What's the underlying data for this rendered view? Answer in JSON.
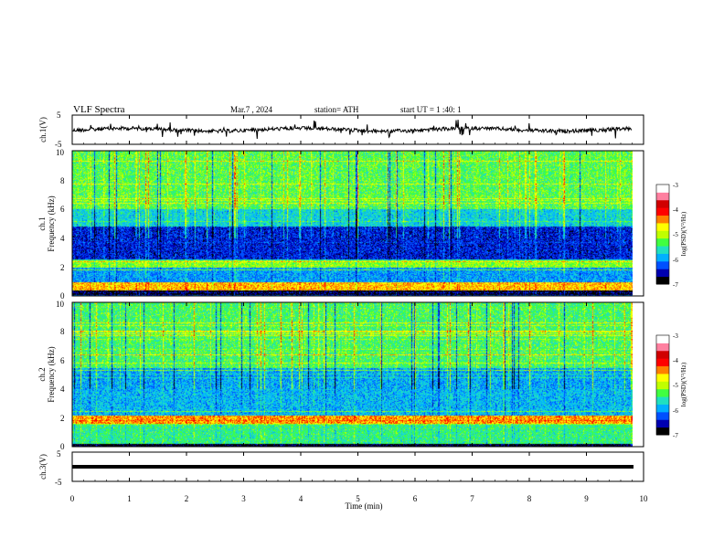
{
  "header": {
    "title": "VLF Spectra",
    "date": "Mar.7 , 2024",
    "station": "station= ATH",
    "start_ut": "start UT = 1 :40: 1"
  },
  "chart_data": [
    {
      "type": "line",
      "panel": "ch1-waveform",
      "ylabel": "ch.1(V)",
      "ytick_labels": [
        "5",
        "-5"
      ],
      "ylim": [
        -5,
        5
      ],
      "xlim": [
        0,
        10
      ],
      "x_end": 9.8,
      "baseline": 0
    },
    {
      "type": "heatmap",
      "panel": "ch1-spectrogram",
      "ylabel_line1": "ch.1",
      "ylabel_line2": "Frequency (kHz)",
      "ytick_labels": [
        "0",
        "2",
        "4",
        "6",
        "8",
        "10"
      ],
      "ylim": [
        0,
        10
      ],
      "xlim": [
        0,
        10
      ],
      "x_end": 9.8,
      "colorbar": {
        "label": "log(PSD)(V²/Hz)",
        "ticks": [
          "-3",
          "-4",
          "-5",
          "-6",
          "-7"
        ],
        "range": [
          -7,
          -3
        ]
      }
    },
    {
      "type": "heatmap",
      "panel": "ch2-spectrogram",
      "ylabel_line1": "ch.2",
      "ylabel_line2": "Frequency (kHz)",
      "ytick_labels": [
        "0",
        "2",
        "4",
        "6",
        "8",
        "10"
      ],
      "ylim": [
        0,
        10
      ],
      "xlim": [
        0,
        10
      ],
      "x_end": 9.8,
      "colorbar": {
        "label": "log(PSD)(V²/Hz)",
        "ticks": [
          "-3",
          "-4",
          "-5",
          "-6",
          "-7"
        ],
        "range": [
          -7,
          -3
        ]
      }
    },
    {
      "type": "line",
      "panel": "ch3-waveform",
      "ylabel": "ch.3(V)",
      "ytick_labels": [
        "5",
        "-5"
      ],
      "ylim": [
        -5,
        5
      ],
      "xlim": [
        0,
        10
      ],
      "x_end": 9.8,
      "baseline": 0
    }
  ],
  "xaxis": {
    "label": "Time (min)",
    "tick_labels": [
      "0",
      "1",
      "2",
      "3",
      "4",
      "5",
      "6",
      "7",
      "8",
      "9",
      "10"
    ]
  },
  "colors": {
    "axis": "#000000",
    "trace": "#000000",
    "colormap": [
      "#000000",
      "#0000b0",
      "#0050ff",
      "#00b0ff",
      "#20e0c0",
      "#40ff40",
      "#c0ff00",
      "#ffff00",
      "#ff8000",
      "#ff0000",
      "#d00000",
      "#ff80a0",
      "#ffffff"
    ]
  }
}
